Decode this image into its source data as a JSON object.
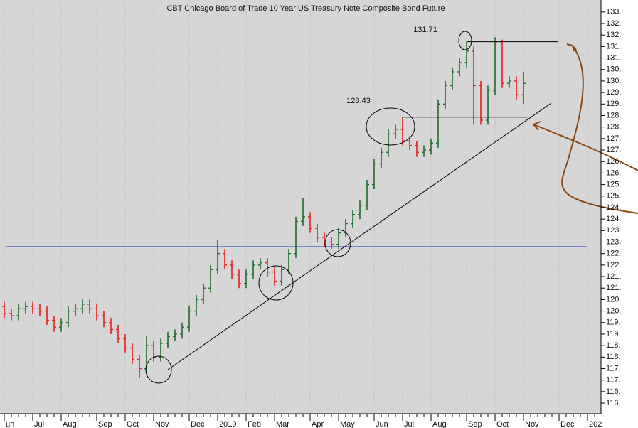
{
  "chart_data": {
    "type": "ohlc",
    "title": "CBT Chicago Board of Trade 10 Year US Treasury Note Composite Bond Future",
    "categories": [
      "un",
      null,
      null,
      null,
      "Jul",
      null,
      null,
      null,
      "Aug",
      null,
      null,
      null,
      null,
      "Sep",
      null,
      null,
      null,
      "Oct",
      null,
      null,
      null,
      "Nov",
      null,
      null,
      null,
      null,
      "Dec",
      null,
      null,
      null,
      "2019",
      null,
      null,
      null,
      "Feb",
      null,
      null,
      null,
      "Mar",
      null,
      null,
      null,
      null,
      "Apr",
      null,
      null,
      null,
      "May",
      null,
      null,
      null,
      null,
      "Jun",
      null,
      null,
      null,
      "Jul",
      null,
      null,
      null,
      "Aug",
      null,
      null,
      null,
      null,
      "Sep",
      null,
      null,
      null,
      "Oct",
      null,
      null,
      null,
      "Nov",
      null,
      null,
      null,
      null,
      "Dec",
      null,
      null,
      null,
      "202",
      null
    ],
    "open": [
      120.2,
      119.9,
      119.8,
      120.1,
      120.2,
      120.1,
      120.0,
      119.6,
      119.3,
      119.5,
      120.0,
      120.1,
      120.3,
      120.1,
      119.8,
      119.5,
      119.2,
      118.8,
      118.4,
      117.9,
      117.5,
      118.5,
      118.0,
      118.6,
      118.9,
      119.0,
      119.3,
      120.0,
      120.5,
      121.0,
      121.8,
      122.5,
      122.0,
      121.6,
      121.2,
      121.6,
      122.0,
      122.1,
      121.7,
      121.3,
      121.8,
      122.5,
      123.9,
      124.1,
      123.6,
      123.2,
      123.0,
      122.9,
      123.4,
      123.8,
      124.2,
      124.6,
      125.5,
      126.4,
      126.9,
      127.7,
      127.9,
      127.4,
      127.2,
      126.9,
      127.0,
      127.3,
      129.0,
      129.8,
      130.4,
      130.8,
      131.3,
      129.8,
      128.3,
      129.6,
      131.7,
      129.9,
      130.0,
      129.4,
      null,
      null,
      null,
      null,
      null,
      null,
      null,
      null,
      null,
      null
    ],
    "high": [
      120.4,
      120.1,
      120.3,
      120.4,
      120.4,
      120.3,
      120.2,
      119.8,
      119.7,
      120.2,
      120.3,
      120.5,
      120.5,
      120.3,
      120.0,
      119.7,
      119.4,
      119.0,
      118.6,
      118.1,
      118.9,
      118.7,
      118.8,
      119.1,
      119.2,
      119.5,
      120.2,
      120.7,
      121.2,
      122.0,
      123.1,
      122.7,
      122.2,
      121.8,
      121.8,
      122.2,
      122.3,
      122.3,
      121.9,
      122.0,
      122.7,
      124.1,
      124.9,
      124.3,
      123.8,
      123.4,
      123.2,
      123.6,
      124.0,
      124.4,
      124.8,
      125.7,
      126.6,
      127.1,
      127.9,
      128.1,
      128.43,
      127.6,
      127.4,
      127.2,
      127.5,
      129.2,
      130.0,
      130.6,
      131.0,
      131.71,
      131.5,
      130.0,
      129.8,
      131.9,
      131.8,
      130.2,
      130.2,
      130.4,
      null,
      null,
      null,
      null,
      null,
      null,
      null,
      null,
      null,
      null
    ],
    "low": [
      119.7,
      119.6,
      119.6,
      119.9,
      119.9,
      119.8,
      119.4,
      119.1,
      119.1,
      119.3,
      119.8,
      119.9,
      119.9,
      119.6,
      119.3,
      119.0,
      118.6,
      118.2,
      117.7,
      117.1,
      117.3,
      117.8,
      117.8,
      118.4,
      118.7,
      118.8,
      119.1,
      119.8,
      120.3,
      120.8,
      121.6,
      121.8,
      121.4,
      121.0,
      121.0,
      121.4,
      121.8,
      121.5,
      121.1,
      121.1,
      121.6,
      122.3,
      123.7,
      123.4,
      123.0,
      122.8,
      122.7,
      122.7,
      123.2,
      123.6,
      124.0,
      124.4,
      125.3,
      126.2,
      126.7,
      127.5,
      127.2,
      127.0,
      126.7,
      126.7,
      126.8,
      127.1,
      128.8,
      129.6,
      130.2,
      130.6,
      128.1,
      128.1,
      128.1,
      129.4,
      129.7,
      129.7,
      129.2,
      129.0,
      null,
      null,
      null,
      null,
      null,
      null,
      null,
      null,
      null,
      null
    ],
    "close": [
      119.9,
      119.8,
      120.1,
      120.2,
      120.1,
      120.0,
      119.6,
      119.3,
      119.5,
      120.0,
      120.1,
      120.3,
      120.1,
      119.8,
      119.5,
      119.2,
      118.8,
      118.4,
      117.9,
      117.5,
      118.5,
      118.0,
      118.6,
      118.9,
      119.0,
      119.3,
      120.0,
      120.5,
      121.0,
      121.8,
      122.5,
      122.0,
      121.6,
      121.2,
      121.6,
      122.0,
      122.1,
      121.7,
      121.3,
      121.8,
      122.5,
      123.9,
      124.1,
      123.6,
      123.2,
      123.0,
      122.9,
      123.4,
      123.8,
      124.2,
      124.6,
      125.5,
      126.4,
      126.9,
      127.7,
      127.9,
      127.4,
      127.2,
      126.9,
      127.0,
      127.3,
      129.0,
      129.8,
      130.4,
      130.8,
      131.3,
      129.8,
      128.3,
      129.6,
      131.7,
      129.9,
      130.0,
      129.4,
      129.9,
      null,
      null,
      null,
      null,
      null,
      null,
      null,
      null,
      null,
      null
    ],
    "up_color": "#1f6b2a",
    "down_color": "#e8201a",
    "ylim": [
      115.6,
      133.52
    ],
    "yticks": [
      {
        "value": 116,
        "label": "116."
      },
      {
        "value": 116.5,
        "label": "116."
      },
      {
        "value": 117,
        "label": "117."
      },
      {
        "value": 117.5,
        "label": "117."
      },
      {
        "value": 118,
        "label": "118."
      },
      {
        "value": 118.5,
        "label": "118."
      },
      {
        "value": 119,
        "label": "119."
      },
      {
        "value": 119.5,
        "label": "119."
      },
      {
        "value": 120,
        "label": "120."
      },
      {
        "value": 120.5,
        "label": "120."
      },
      {
        "value": 121,
        "label": "121."
      },
      {
        "value": 121.5,
        "label": "121."
      },
      {
        "value": 122,
        "label": "122."
      },
      {
        "value": 122.5,
        "label": "122."
      },
      {
        "value": 123,
        "label": "123."
      },
      {
        "value": 123.5,
        "label": "123."
      },
      {
        "value": 124,
        "label": "124."
      },
      {
        "value": 124.5,
        "label": "124."
      },
      {
        "value": 125,
        "label": "125."
      },
      {
        "value": 125.5,
        "label": "125."
      },
      {
        "value": 126,
        "label": "126."
      },
      {
        "value": 126.5,
        "label": "126."
      },
      {
        "value": 127,
        "label": "127."
      },
      {
        "value": 127.5,
        "label": "127."
      },
      {
        "value": 128,
        "label": "128."
      },
      {
        "value": 128.5,
        "label": "128."
      },
      {
        "value": 129,
        "label": "129."
      },
      {
        "value": 129.5,
        "label": "129."
      },
      {
        "value": 130,
        "label": "130."
      },
      {
        "value": 130.5,
        "label": "130."
      },
      {
        "value": 131,
        "label": "131."
      },
      {
        "value": 131.5,
        "label": "131."
      },
      {
        "value": 132,
        "label": "132."
      },
      {
        "value": 132.5,
        "label": "132."
      },
      {
        "value": 133,
        "label": "133."
      }
    ],
    "hline": {
      "value": 122.8,
      "color": "#1f2fd6"
    },
    "annotations": [
      {
        "text": "131.71",
        "value": 131.71
      },
      {
        "text": "128.43",
        "value": 128.43
      }
    ],
    "grid": true
  }
}
